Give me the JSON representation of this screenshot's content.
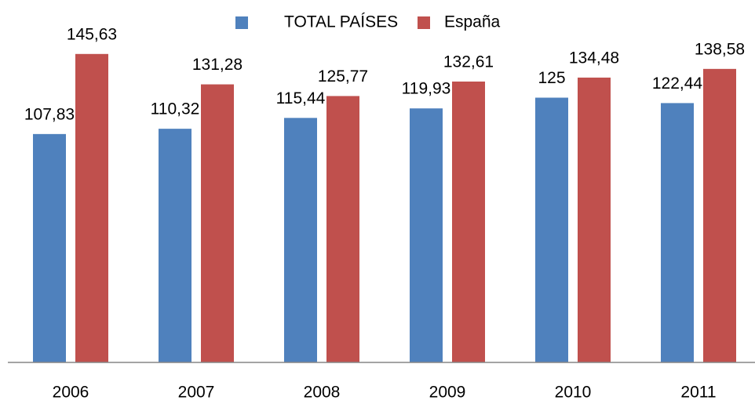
{
  "chart_data": {
    "type": "bar",
    "categories": [
      "2006",
      "2007",
      "2008",
      "2009",
      "2010",
      "2011"
    ],
    "series": [
      {
        "name": "TOTAL PAÍSES",
        "color": "#4f81bd",
        "values": [
          107.83,
          110.32,
          115.44,
          119.93,
          125,
          122.44
        ],
        "value_labels": [
          "107,83",
          "110,32",
          "115,44",
          "119,93",
          "125",
          "122,44"
        ]
      },
      {
        "name": "España",
        "color": "#c0504d",
        "values": [
          145.63,
          131.28,
          125.77,
          132.61,
          134.48,
          138.58
        ],
        "value_labels": [
          "145,63",
          "131,28",
          "125,77",
          "132,61",
          "134,48",
          "138,58"
        ]
      }
    ],
    "ylim": [
      0,
      160
    ],
    "legend": "top"
  }
}
